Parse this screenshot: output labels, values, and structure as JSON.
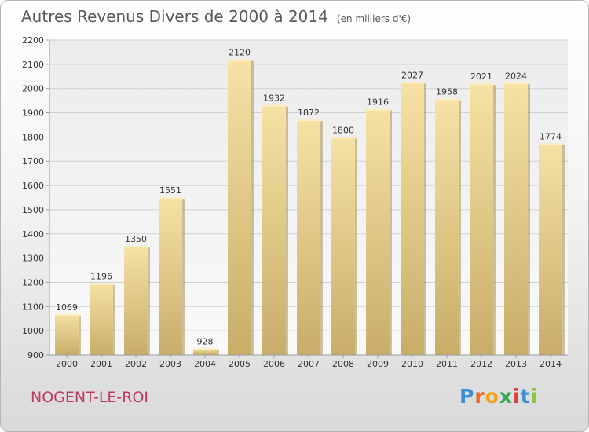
{
  "title": {
    "main": "Autres Revenus Divers de 2000 à 2014",
    "unit": "(en milliers d'€)"
  },
  "location": "NOGENT-LE-ROI",
  "brand": {
    "text": "Proxiti",
    "letters": [
      {
        "char": "P",
        "color": "#3b8fd6"
      },
      {
        "char": "r",
        "color": "#e86a23"
      },
      {
        "char": "o",
        "color": "#f2a21d"
      },
      {
        "char": "x",
        "color": "#3aa655"
      },
      {
        "char": "i",
        "color": "#d93f3f"
      },
      {
        "char": "t",
        "color": "#3b8fd6"
      },
      {
        "char": "i",
        "color": "#8bc53f"
      }
    ]
  },
  "colors": {
    "bar_light": "#f6e2a4",
    "bar_dark": "#c8ad69",
    "grid": "#d0d0d0",
    "axis": "#9a9a9a",
    "location_text": "#c03a60"
  },
  "chart_data": {
    "type": "bar",
    "title": "Autres Revenus Divers de 2000 à 2014",
    "subtitle": "(en milliers d'€)",
    "categories": [
      "2000",
      "2001",
      "2002",
      "2003",
      "2004",
      "2005",
      "2006",
      "2007",
      "2008",
      "2009",
      "2010",
      "2011",
      "2012",
      "2013",
      "2014"
    ],
    "values": [
      1069,
      1196,
      1350,
      1551,
      928,
      2120,
      1932,
      1872,
      1800,
      1916,
      2027,
      1958,
      2021,
      2024,
      1774
    ],
    "ylim": [
      900,
      2200
    ],
    "yticks": [
      900,
      1000,
      1100,
      1200,
      1300,
      1400,
      1500,
      1600,
      1700,
      1800,
      1900,
      2000,
      2100,
      2200
    ],
    "xlabel": "",
    "ylabel": "",
    "grid": true,
    "legend": "none"
  }
}
